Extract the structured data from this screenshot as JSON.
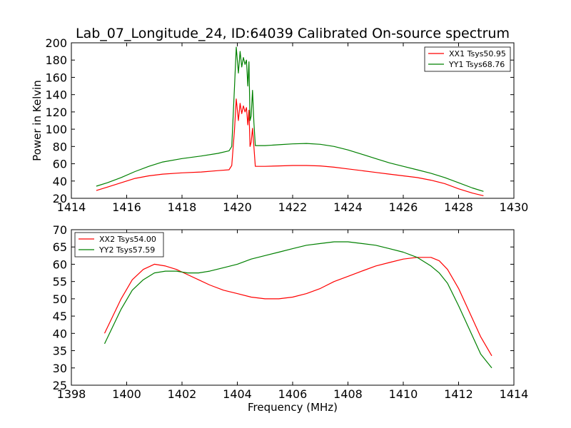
{
  "title": "Lab_07_Longitude_24, ID:64039 Calibrated On-source spectrum",
  "chart_data": [
    {
      "type": "line",
      "ylabel": "Power in Kelvin",
      "xlabel": "",
      "xlim": [
        1414,
        1430
      ],
      "ylim": [
        20,
        200
      ],
      "xticks": [
        "1414",
        "1416",
        "1418",
        "1420",
        "1422",
        "1424",
        "1426",
        "1428",
        "1430"
      ],
      "yticks": [
        "20",
        "40",
        "60",
        "80",
        "100",
        "120",
        "140",
        "160",
        "180",
        "200"
      ],
      "grid": false,
      "legend_position": "top-right",
      "series": [
        {
          "name": "XX1 Tsys50.95",
          "color": "#ff0000",
          "x": [
            1414.9,
            1415.3,
            1415.8,
            1416.3,
            1416.8,
            1417.3,
            1418.0,
            1418.7,
            1419.3,
            1419.7,
            1419.8,
            1419.9,
            1419.96,
            1420.04,
            1420.1,
            1420.16,
            1420.22,
            1420.28,
            1420.33,
            1420.38,
            1420.42,
            1420.46,
            1420.5,
            1420.55,
            1420.6,
            1420.65,
            1421.0,
            1421.5,
            1422.0,
            1422.5,
            1423.0,
            1423.5,
            1424.0,
            1424.5,
            1425.0,
            1425.5,
            1426.0,
            1426.5,
            1427.0,
            1427.5,
            1428.0,
            1428.5,
            1428.9
          ],
          "values": [
            29,
            33,
            38,
            43,
            46,
            48,
            49.5,
            50.5,
            52,
            53,
            58,
            100,
            135,
            110,
            130,
            118,
            127,
            120,
            125,
            105,
            122,
            80,
            85,
            101,
            80,
            57,
            57,
            57.5,
            58,
            58,
            57.5,
            56,
            54,
            52,
            50,
            48,
            46,
            44,
            41,
            37,
            31,
            26,
            23
          ]
        },
        {
          "name": "YY1 Tsys68.76",
          "color": "#008000",
          "x": [
            1414.9,
            1415.3,
            1415.8,
            1416.3,
            1416.8,
            1417.3,
            1418.0,
            1418.7,
            1419.3,
            1419.7,
            1419.8,
            1419.9,
            1419.96,
            1420.04,
            1420.1,
            1420.16,
            1420.22,
            1420.28,
            1420.33,
            1420.38,
            1420.42,
            1420.46,
            1420.5,
            1420.55,
            1420.6,
            1420.65,
            1421.0,
            1421.5,
            1422.0,
            1422.5,
            1423.0,
            1423.5,
            1424.0,
            1424.5,
            1425.0,
            1425.5,
            1426.0,
            1426.5,
            1427.0,
            1427.5,
            1428.0,
            1428.5,
            1428.9
          ],
          "values": [
            34,
            38,
            44,
            51,
            57,
            62,
            66,
            69,
            72,
            75,
            80,
            150,
            195,
            165,
            190,
            172,
            183,
            175,
            180,
            150,
            178,
            110,
            115,
            145,
            108,
            81,
            81,
            82,
            83,
            83.5,
            82.5,
            80,
            76,
            71,
            66,
            61,
            57,
            53,
            49,
            44,
            38,
            32,
            28
          ]
        }
      ]
    },
    {
      "type": "line",
      "xlabel": "Frequency (MHz)",
      "ylabel": "",
      "xlim": [
        1398,
        1414
      ],
      "ylim": [
        25,
        70
      ],
      "xticks": [
        "1398",
        "1400",
        "1402",
        "1404",
        "1406",
        "1408",
        "1410",
        "1412",
        "1414"
      ],
      "yticks": [
        "25",
        "30",
        "35",
        "40",
        "45",
        "50",
        "55",
        "60",
        "65",
        "70"
      ],
      "grid": false,
      "legend_position": "top-left",
      "series": [
        {
          "name": "XX2 Tsys54.00",
          "color": "#ff0000",
          "x": [
            1399.2,
            1399.5,
            1399.8,
            1400.2,
            1400.6,
            1401.0,
            1401.4,
            1401.8,
            1402.2,
            1402.6,
            1403.0,
            1403.5,
            1404.0,
            1404.5,
            1405.0,
            1405.5,
            1406.0,
            1406.5,
            1407.0,
            1407.5,
            1408.0,
            1408.5,
            1409.0,
            1409.5,
            1410.0,
            1410.5,
            1411.0,
            1411.3,
            1411.6,
            1412.0,
            1412.4,
            1412.8,
            1413.2
          ],
          "values": [
            40,
            45,
            50,
            55.5,
            58.5,
            60,
            59.5,
            58.5,
            57,
            55.5,
            54,
            52.5,
            51.5,
            50.5,
            50,
            50,
            50.5,
            51.5,
            53,
            55,
            56.5,
            58,
            59.5,
            60.5,
            61.5,
            62,
            62,
            61,
            58.5,
            53,
            46,
            39,
            33.5
          ]
        },
        {
          "name": "YY2 Tsys57.59",
          "color": "#008000",
          "x": [
            1399.2,
            1399.5,
            1399.8,
            1400.2,
            1400.6,
            1401.0,
            1401.4,
            1401.8,
            1402.2,
            1402.6,
            1403.0,
            1403.5,
            1404.0,
            1404.5,
            1405.0,
            1405.5,
            1406.0,
            1406.5,
            1407.0,
            1407.5,
            1408.0,
            1408.5,
            1409.0,
            1409.5,
            1410.0,
            1410.5,
            1411.0,
            1411.3,
            1411.6,
            1412.0,
            1412.4,
            1412.8,
            1413.2
          ],
          "values": [
            37,
            42,
            47,
            52.5,
            55.5,
            57.5,
            58,
            58,
            57.5,
            57.5,
            58,
            59,
            60,
            61.5,
            62.5,
            63.5,
            64.5,
            65.5,
            66,
            66.5,
            66.5,
            66,
            65.5,
            64.5,
            63.5,
            62,
            59.5,
            57.5,
            54.5,
            48,
            41,
            34,
            30
          ]
        }
      ]
    }
  ]
}
